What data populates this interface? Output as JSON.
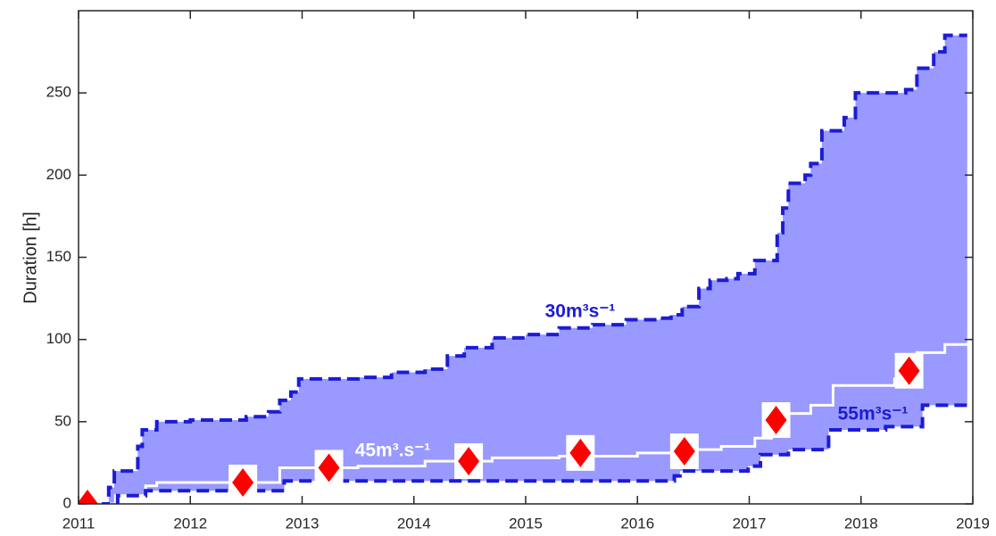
{
  "chart_data": {
    "type": "line",
    "ylabel": "Duration [h]",
    "xlim": [
      2011,
      2019
    ],
    "ylim": [
      0,
      300
    ],
    "xticks": [
      2011,
      2012,
      2013,
      2014,
      2015,
      2016,
      2017,
      2018,
      2019
    ],
    "yticks": [
      0,
      50,
      100,
      150,
      200,
      250
    ],
    "fill_color": "#9999ff",
    "series": [
      {
        "name": "30m³s⁻¹",
        "color": "#1c1cd6",
        "dashed": true,
        "x": [
          2011.0,
          2011.27,
          2011.32,
          2011.53,
          2011.57,
          2011.7,
          2012.0,
          2012.5,
          2012.7,
          2012.8,
          2012.9,
          2012.97,
          2013.5,
          2013.8,
          2014.1,
          2014.3,
          2014.45,
          2014.7,
          2015.0,
          2015.3,
          2015.6,
          2015.9,
          2016.2,
          2016.3,
          2016.4,
          2016.55,
          2016.65,
          2016.8,
          2016.9,
          2017.05,
          2017.25,
          2017.3,
          2017.35,
          2017.5,
          2017.55,
          2017.65,
          2017.85,
          2017.95,
          2018.4,
          2018.5,
          2018.65,
          2018.75,
          2018.95
        ],
        "values": [
          0,
          10,
          20,
          35,
          45,
          50,
          51,
          53,
          56,
          63,
          68,
          76,
          77,
          80,
          82,
          90,
          95,
          101,
          103,
          107,
          109,
          112,
          113,
          115,
          120,
          131,
          136,
          137,
          140,
          148,
          165,
          180,
          195,
          200,
          207,
          227,
          235,
          250,
          252,
          265,
          275,
          285,
          285
        ]
      },
      {
        "name": "45m³.s⁻¹",
        "color": "#ffffff",
        "dashed": false,
        "x": [
          2011.0,
          2011.3,
          2011.33,
          2011.6,
          2011.7,
          2012.8,
          2013.5,
          2014.1,
          2014.7,
          2015.3,
          2016.0,
          2016.5,
          2016.75,
          2017.05,
          2017.2,
          2017.35,
          2017.55,
          2017.75,
          2018.3,
          2018.5,
          2018.75,
          2018.95
        ],
        "values": [
          0,
          0,
          5,
          11,
          13,
          22,
          23,
          26,
          28,
          29,
          31,
          33,
          35,
          40,
          41,
          55,
          60,
          72,
          76,
          92,
          97,
          98
        ]
      },
      {
        "name": "55m³s⁻¹",
        "color": "#1c1cd6",
        "dashed": true,
        "x": [
          2011.0,
          2011.3,
          2011.35,
          2011.6,
          2012.84,
          2016.33,
          2016.38,
          2016.99,
          2017.1,
          2017.35,
          2017.71,
          2018.22,
          2018.55,
          2018.95
        ],
        "values": [
          0,
          0,
          5,
          8,
          14,
          17,
          20,
          23,
          30,
          33,
          45,
          47,
          60,
          61
        ]
      }
    ],
    "markers": {
      "color": "#ff0000",
      "x": [
        2011.08,
        2012.47,
        2013.24,
        2014.49,
        2015.49,
        2016.42,
        2017.24,
        2018.43
      ],
      "values": [
        0,
        13,
        22,
        26,
        31,
        32,
        51,
        81
      ]
    }
  }
}
